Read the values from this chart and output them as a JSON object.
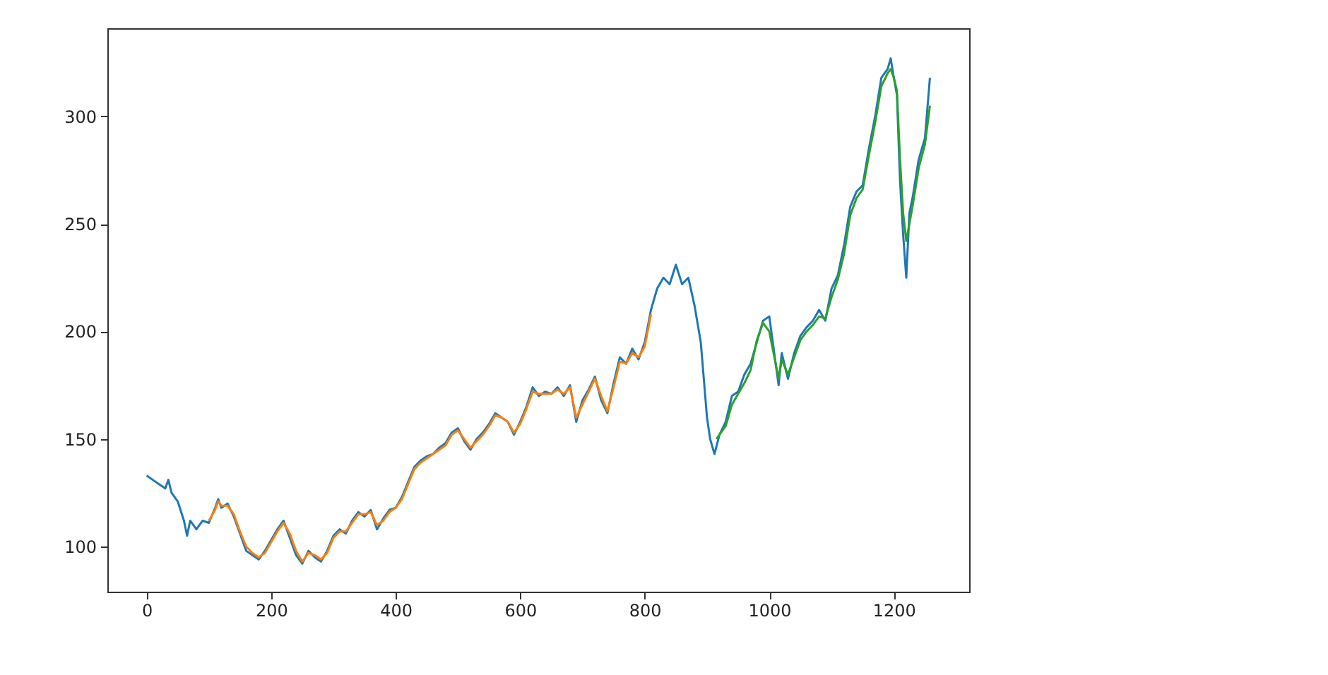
{
  "chart_data": {
    "type": "line",
    "xlim": [
      -63,
      1321
    ],
    "ylim": [
      79,
      341
    ],
    "xticks": [
      0,
      200,
      400,
      600,
      800,
      1000,
      1200
    ],
    "yticks": [
      100,
      150,
      200,
      250,
      300
    ],
    "grid": false,
    "marker": "none",
    "line_style": "solid",
    "series": [
      {
        "color": "#1f77b4",
        "x": [
          0,
          10,
          20,
          30,
          35,
          40,
          50,
          60,
          65,
          70,
          80,
          90,
          100,
          110,
          115,
          120,
          130,
          140,
          150,
          160,
          170,
          180,
          190,
          200,
          210,
          220,
          230,
          240,
          250,
          260,
          270,
          280,
          290,
          300,
          310,
          320,
          330,
          340,
          350,
          360,
          370,
          380,
          390,
          400,
          410,
          420,
          430,
          440,
          450,
          460,
          470,
          480,
          490,
          500,
          510,
          520,
          530,
          540,
          550,
          560,
          570,
          580,
          590,
          600,
          610,
          620,
          630,
          640,
          650,
          660,
          670,
          680,
          690,
          700,
          710,
          720,
          730,
          740,
          750,
          760,
          770,
          780,
          790,
          800,
          810,
          820,
          830,
          840,
          850,
          860,
          870,
          880,
          890,
          900,
          905,
          912,
          920,
          930,
          940,
          950,
          960,
          970,
          980,
          990,
          1000,
          1015,
          1020,
          1030,
          1040,
          1050,
          1060,
          1070,
          1080,
          1090,
          1100,
          1110,
          1120,
          1130,
          1140,
          1150,
          1160,
          1170,
          1180,
          1190,
          1195,
          1200,
          1205,
          1210,
          1215,
          1220,
          1225,
          1230,
          1240,
          1250,
          1258
        ],
        "values": [
          133,
          131,
          129,
          127,
          131,
          125,
          121,
          112,
          105,
          112,
          108,
          112,
          111,
          118,
          122,
          118,
          120,
          114,
          106,
          98,
          96,
          94,
          98,
          103,
          108,
          112,
          104,
          96,
          92,
          98,
          95,
          93,
          98,
          105,
          108,
          106,
          112,
          116,
          114,
          117,
          108,
          113,
          117,
          118,
          123,
          130,
          137,
          140,
          142,
          143,
          146,
          148,
          153,
          155,
          149,
          145,
          150,
          153,
          157,
          162,
          160,
          158,
          152,
          158,
          165,
          174,
          170,
          172,
          171,
          174,
          170,
          175,
          158,
          168,
          173,
          179,
          168,
          162,
          176,
          188,
          185,
          192,
          187,
          195,
          210,
          220,
          225,
          222,
          231,
          222,
          225,
          212,
          195,
          160,
          150,
          143,
          152,
          158,
          170,
          172,
          180,
          185,
          195,
          205,
          207,
          175,
          190,
          178,
          190,
          198,
          202,
          205,
          210,
          205,
          220,
          226,
          240,
          258,
          265,
          268,
          285,
          300,
          318,
          322,
          327,
          318,
          310,
          270,
          245,
          225,
          255,
          262,
          280,
          290,
          318
        ]
      },
      {
        "color": "#ff7f0e",
        "x": [
          100,
          110,
          115,
          120,
          130,
          140,
          150,
          160,
          170,
          180,
          190,
          200,
          210,
          220,
          230,
          240,
          250,
          260,
          270,
          280,
          290,
          300,
          310,
          320,
          330,
          340,
          350,
          360,
          370,
          380,
          390,
          400,
          410,
          420,
          430,
          440,
          450,
          460,
          470,
          480,
          490,
          500,
          510,
          520,
          530,
          540,
          550,
          560,
          570,
          580,
          590,
          600,
          610,
          620,
          630,
          640,
          650,
          660,
          670,
          680,
          690,
          700,
          710,
          720,
          730,
          740,
          750,
          760,
          770,
          780,
          790,
          800,
          810
        ],
        "values": [
          112,
          117,
          121,
          119,
          119,
          115,
          107,
          100,
          97,
          95,
          97,
          102,
          107,
          111,
          106,
          98,
          93,
          97,
          96,
          94,
          97,
          104,
          107,
          107,
          111,
          115,
          115,
          116,
          110,
          112,
          116,
          118,
          122,
          129,
          136,
          139,
          141,
          143,
          145,
          147,
          152,
          154,
          150,
          146,
          149,
          152,
          156,
          161,
          160,
          158,
          153,
          157,
          164,
          172,
          171,
          171,
          171,
          173,
          171,
          174,
          160,
          166,
          172,
          178,
          170,
          163,
          174,
          186,
          185,
          190,
          188,
          193,
          208
        ]
      },
      {
        "color": "#2ca02c",
        "x": [
          915,
          920,
          930,
          940,
          950,
          960,
          970,
          980,
          990,
          1000,
          1015,
          1020,
          1030,
          1040,
          1050,
          1060,
          1070,
          1080,
          1090,
          1100,
          1110,
          1120,
          1130,
          1140,
          1150,
          1160,
          1170,
          1180,
          1190,
          1195,
          1200,
          1205,
          1210,
          1215,
          1220,
          1225,
          1230,
          1240,
          1250,
          1258
        ],
        "values": [
          150,
          152,
          156,
          166,
          171,
          176,
          182,
          196,
          204,
          200,
          178,
          187,
          180,
          188,
          196,
          200,
          203,
          207,
          206,
          216,
          224,
          236,
          254,
          262,
          266,
          282,
          297,
          314,
          320,
          322,
          318,
          312,
          280,
          255,
          242,
          250,
          258,
          276,
          287,
          305
        ]
      }
    ]
  }
}
